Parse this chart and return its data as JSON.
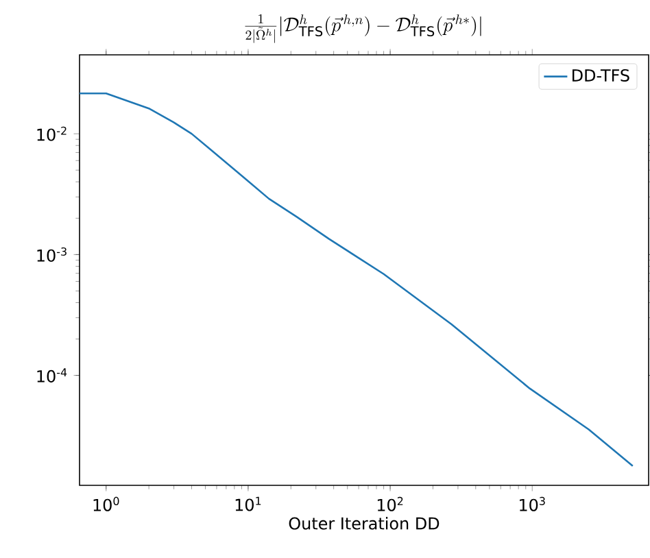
{
  "chart_data": {
    "type": "line",
    "title": "\\frac{1}{2|\\tilde{\\Omega}^h|}|\\mathcal{D}^h_{\\mathrm{TFS}}(\\vec{p}^{\\,h,n}) - \\mathcal{D}^h_{\\mathrm{TFS}}(\\vec{p}^{\\,h*})|",
    "xlabel": "Outer Iteration DD",
    "x": [
      0.65,
      1,
      2,
      3,
      4,
      5.3,
      10.4,
      14,
      22,
      37,
      90,
      270,
      960,
      2500,
      5100
    ],
    "series": [
      {
        "name": "DD-TFS",
        "color": "#1f77b4",
        "values": [
          0.0216,
          0.0216,
          0.0162,
          0.0124,
          0.01,
          0.0076,
          0.0039,
          0.0029,
          0.00205,
          0.00135,
          0.00069,
          0.000265,
          7.8e-05,
          3.57e-05,
          1.78e-05
        ]
      }
    ],
    "log": "xy",
    "xlim": [
      0.65,
      6600
    ],
    "ylim": [
      1.23e-05,
      0.045
    ],
    "xticks": [
      {
        "value": 1,
        "label": "10$^{0}$"
      },
      {
        "value": 10,
        "label": "10$^{1}$"
      },
      {
        "value": 100,
        "label": "10$^{2}$"
      },
      {
        "value": 1000,
        "label": "10$^{3}$"
      }
    ],
    "yticks": [
      {
        "value": 0.0001,
        "label": "10$^{-4}$"
      },
      {
        "value": 0.001,
        "label": "10$^{-3}$"
      },
      {
        "value": 0.01,
        "label": "10$^{-2}$"
      }
    ],
    "grid": false,
    "legend": "top right",
    "marker": "none",
    "line_style": "solid"
  }
}
